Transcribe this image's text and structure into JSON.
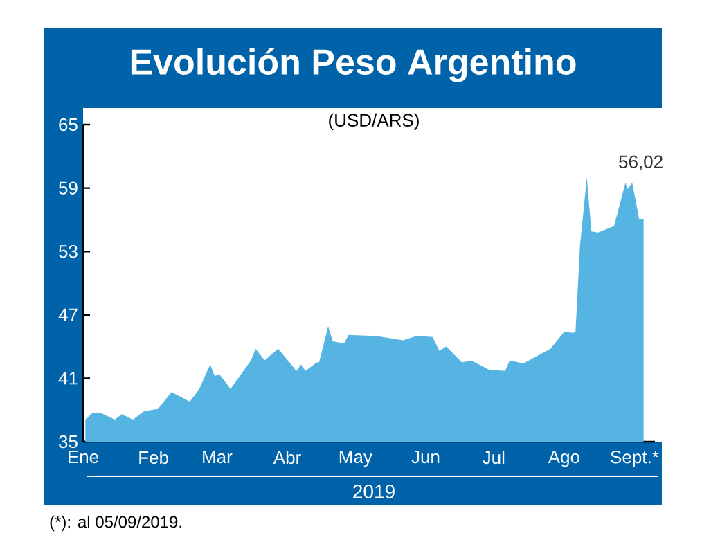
{
  "chart_data": {
    "type": "area",
    "title": "Evolución Peso Argentino",
    "subtitle": "(USD/ARS)",
    "xlabel": "2019",
    "x": [
      "2019-01-02",
      "2019-01-05",
      "2019-01-09",
      "2019-01-15",
      "2019-01-18",
      "2019-01-23",
      "2019-01-28",
      "2019-02-03",
      "2019-02-09",
      "2019-02-17",
      "2019-02-21",
      "2019-02-26",
      "2019-02-28",
      "2019-03-02",
      "2019-03-07",
      "2019-03-16",
      "2019-03-18",
      "2019-03-22",
      "2019-03-28",
      "2019-04-05",
      "2019-04-07",
      "2019-04-09",
      "2019-04-14",
      "2019-04-15",
      "2019-04-19",
      "2019-04-21",
      "2019-04-26",
      "2019-04-28",
      "2019-05-10",
      "2019-05-22",
      "2019-05-28",
      "2019-06-04",
      "2019-06-07",
      "2019-06-10",
      "2019-06-17",
      "2019-06-21",
      "2019-06-29",
      "2019-07-06",
      "2019-07-08",
      "2019-07-14",
      "2019-07-20",
      "2019-07-26",
      "2019-08-01",
      "2019-08-05",
      "2019-08-06",
      "2019-08-08",
      "2019-08-11",
      "2019-08-13",
      "2019-08-16",
      "2019-08-23",
      "2019-08-28",
      "2019-08-29",
      "2019-08-31",
      "2019-09-03",
      "2019-09-05"
    ],
    "values": [
      37.1,
      37.7,
      37.7,
      37.1,
      37.6,
      37.1,
      37.9,
      38.1,
      39.7,
      38.8,
      39.9,
      42.3,
      41.2,
      41.4,
      40.0,
      42.7,
      43.8,
      42.7,
      43.8,
      41.7,
      42.3,
      41.7,
      42.5,
      42.5,
      45.9,
      44.5,
      44.3,
      45.1,
      45.0,
      44.6,
      45.0,
      44.9,
      43.6,
      44.0,
      42.5,
      42.7,
      41.8,
      41.7,
      42.7,
      42.4,
      43.1,
      43.8,
      45.4,
      45.3,
      45.4,
      53.6,
      60.0,
      54.9,
      54.8,
      55.4,
      59.5,
      58.9,
      59.5,
      56.1,
      56.02
    ],
    "color": "#56b4e2",
    "xlim": [
      "2019-01-01",
      "2019-09-10"
    ],
    "xticks": [
      {
        "value": "2019-01-01",
        "label": "Ene"
      },
      {
        "value": "2019-02-01",
        "label": "Feb"
      },
      {
        "value": "2019-03-01",
        "label": "Mar"
      },
      {
        "value": "2019-04-01",
        "label": "Abr"
      },
      {
        "value": "2019-05-01",
        "label": "May"
      },
      {
        "value": "2019-06-01",
        "label": "Jun"
      },
      {
        "value": "2019-07-01",
        "label": "Jul"
      },
      {
        "value": "2019-08-01",
        "label": "Ago"
      },
      {
        "value": "2019-09-01",
        "label": "Sept.*"
      }
    ],
    "ylim": [
      35,
      65
    ],
    "yticks": [
      35,
      41,
      47,
      53,
      59,
      65
    ],
    "annotations": [
      {
        "text": "56,02",
        "x": "2019-09-05",
        "y": 56.02
      },
      "(*): al 05/09/2019."
    ]
  }
}
